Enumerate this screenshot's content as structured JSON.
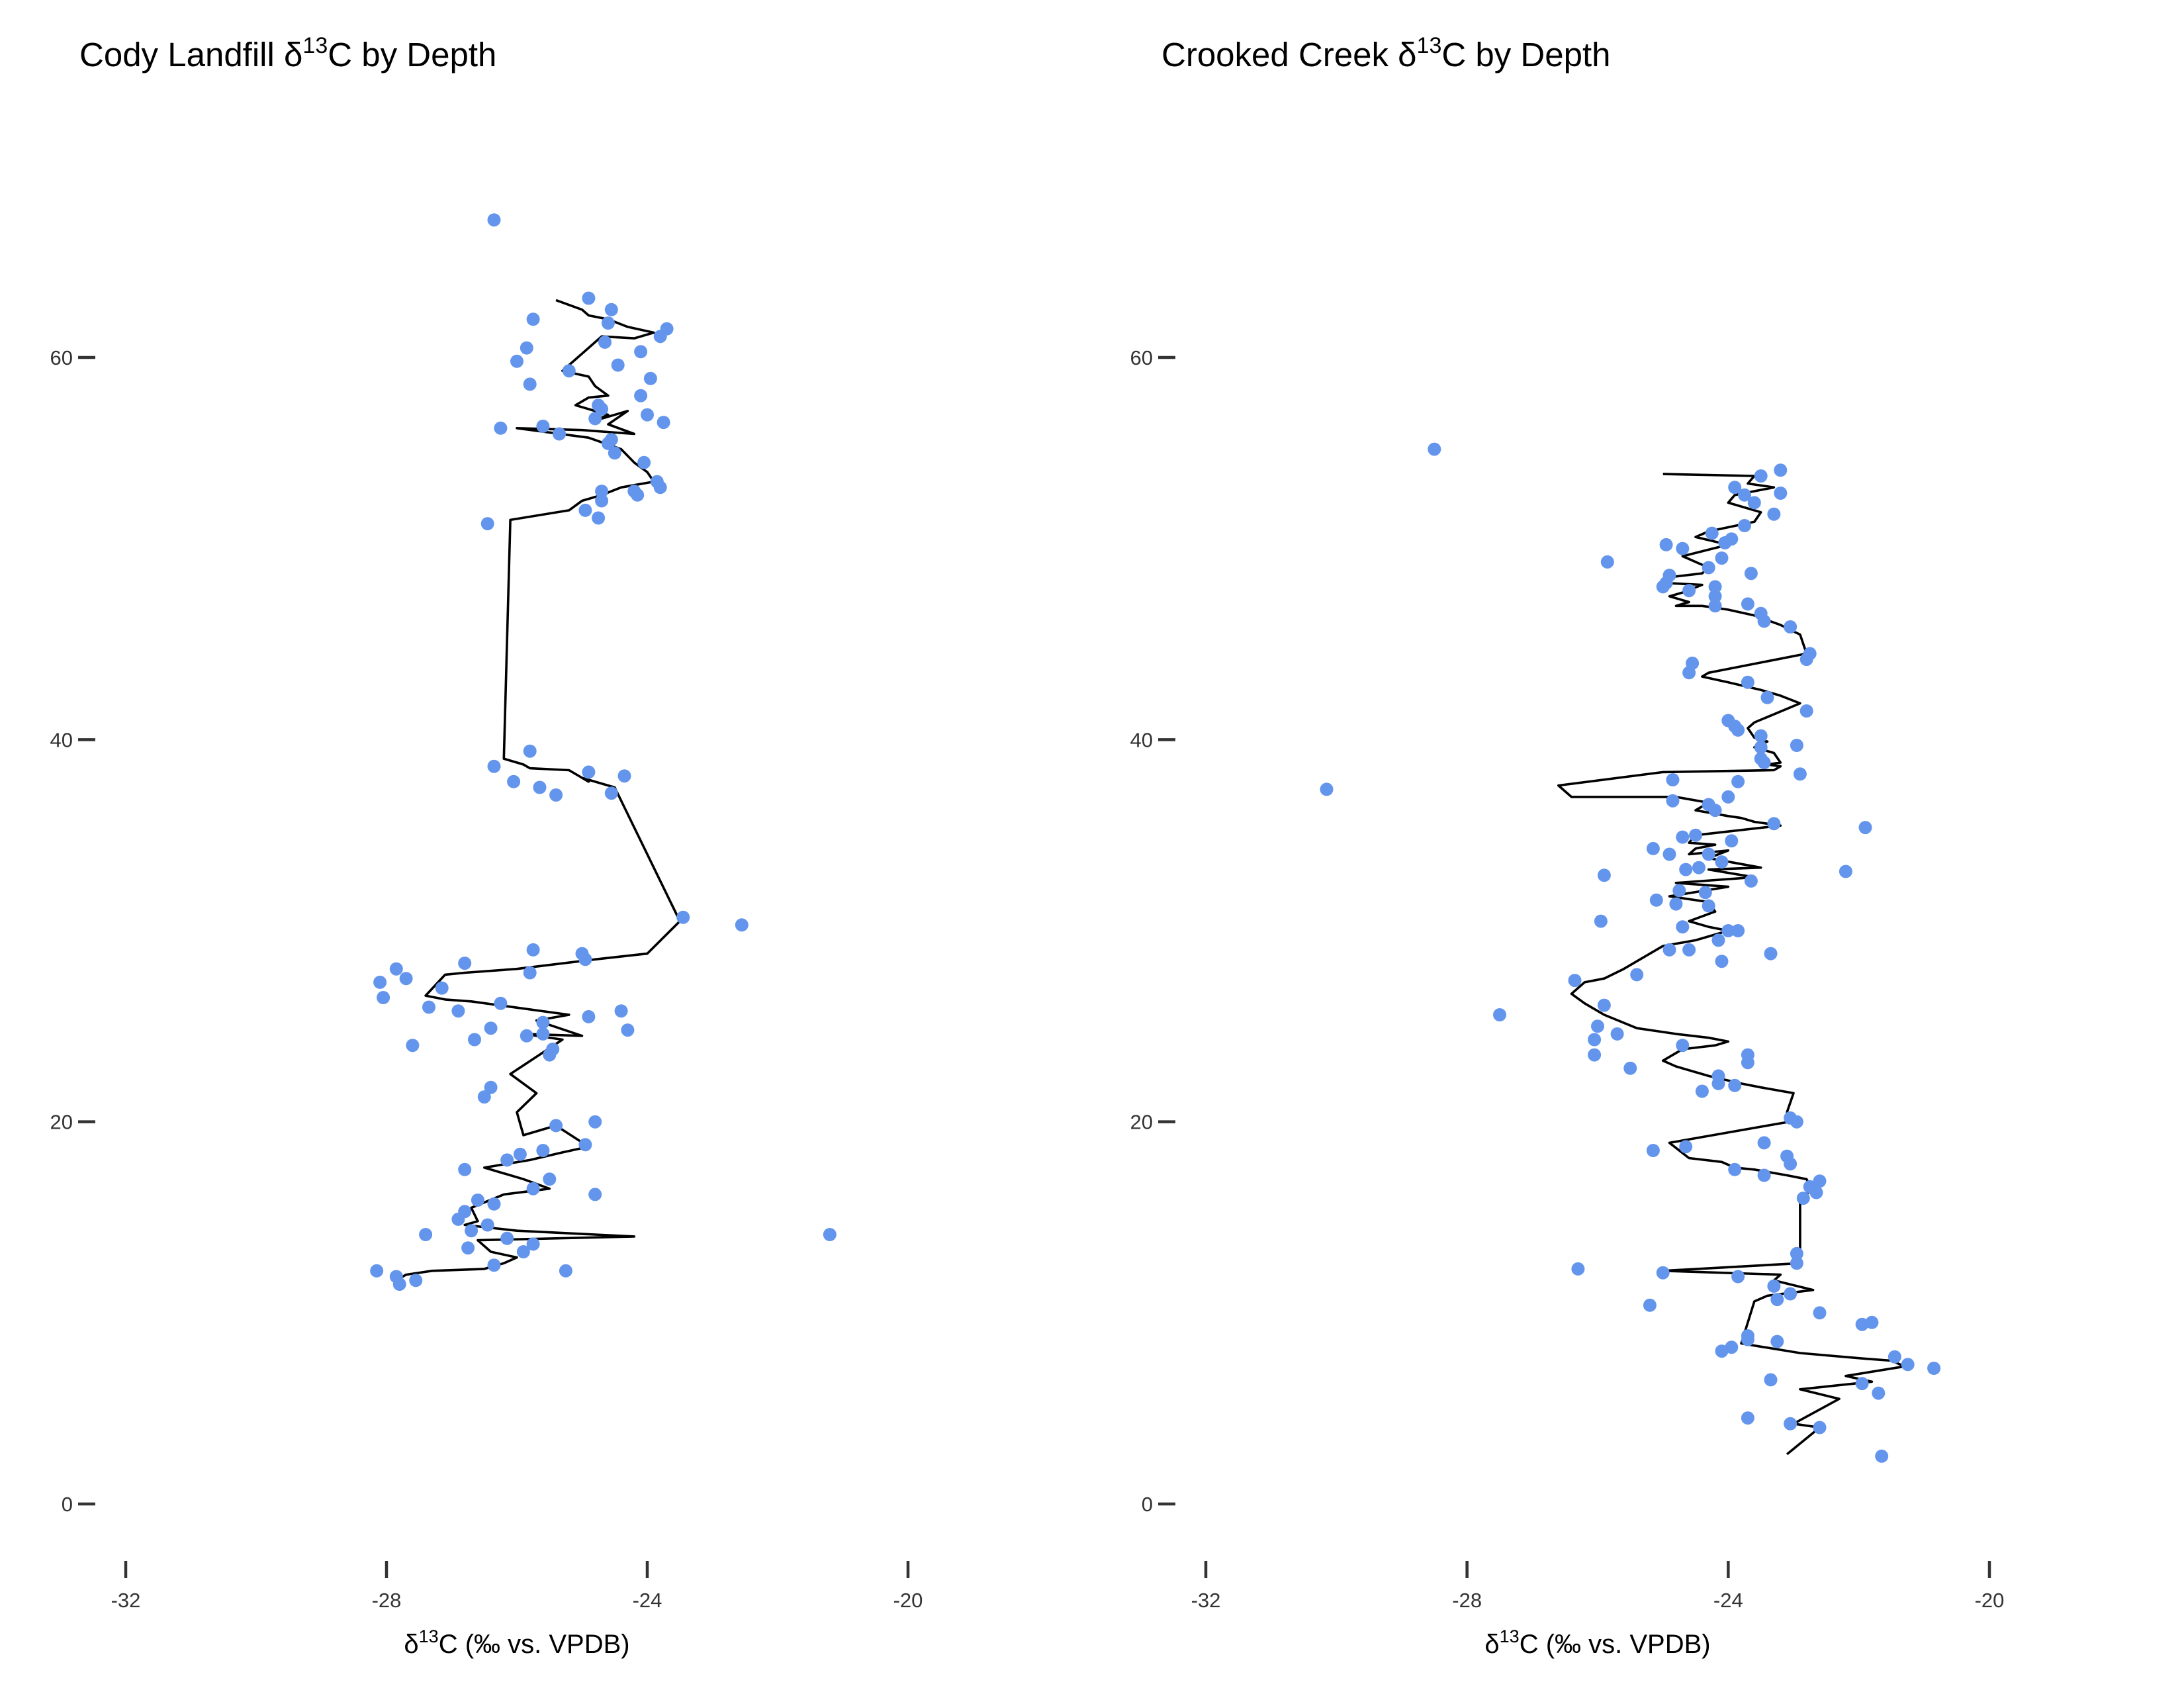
{
  "colors": {
    "points": "#6495ED",
    "line": "#000000",
    "text": "#333333"
  },
  "chart_data": [
    {
      "type": "scatter",
      "title_prefix": "Cody Landfill δ",
      "title_sup": "13",
      "title_suffix": "C by Depth",
      "xlabel_prefix": "δ",
      "xlabel_sup": "13",
      "xlabel_suffix": "C (‰ vs. VPDB)",
      "ylabel": "",
      "xlim": [
        -32.3,
        -19.5
      ],
      "ylim": [
        -2,
        70
      ],
      "x_ticks": [
        -32,
        -28,
        -24,
        -20
      ],
      "x_tick_labels": [
        "-32",
        "-28",
        "-24",
        "-20"
      ],
      "y_ticks": [
        0,
        20,
        40,
        60
      ],
      "y_tick_labels": [
        "0",
        "20",
        "40",
        "60"
      ],
      "grid": false,
      "legend": "none",
      "series": [
        {
          "kind": "points",
          "x": [
            -26.35,
            -24.9,
            -24.55,
            -25.75,
            -24.6,
            -23.7,
            -23.8,
            -24.65,
            -25.85,
            -24.1,
            -26.0,
            -24.45,
            -25.2,
            -23.95,
            -25.8,
            -24.1,
            -24.75,
            -24.7,
            -24.0,
            -24.8,
            -26.25,
            -23.75,
            -25.6,
            -25.35,
            -24.55,
            -24.6,
            -24.5,
            -24.05,
            -23.85,
            -23.8,
            -24.7,
            -24.2,
            -24.15,
            -24.7,
            -24.95,
            -24.75,
            -26.45,
            -25.8,
            -24.9,
            -26.35,
            -24.35,
            -26.05,
            -25.65,
            -25.4,
            -24.55,
            -23.45,
            -22.55,
            -25.75,
            -25.0,
            -24.95,
            -26.8,
            -27.85,
            -25.8,
            -28.1,
            -27.7,
            -28.05,
            -27.15,
            -27.35,
            -26.25,
            -26.9,
            -24.4,
            -24.9,
            -25.6,
            -26.4,
            -24.3,
            -25.6,
            -25.85,
            -26.65,
            -27.6,
            -25.45,
            -25.5,
            -26.4,
            -26.5,
            -24.8,
            -25.4,
            -24.95,
            -25.6,
            -25.95,
            -26.15,
            -26.8,
            -25.5,
            -24.8,
            -25.75,
            -26.6,
            -26.35,
            -26.8,
            -26.9,
            -26.45,
            -26.7,
            -27.4,
            -26.15,
            -25.75,
            -26.75,
            -25.9,
            -21.2,
            -26.35,
            -25.25,
            -28.15,
            -27.85,
            -27.55,
            -27.8
          ],
          "y": [
            67.2,
            63.1,
            62.5,
            62.0,
            61.8,
            61.5,
            61.1,
            60.8,
            60.5,
            60.3,
            59.8,
            59.6,
            59.3,
            58.9,
            58.6,
            58.0,
            57.5,
            57.3,
            57.0,
            56.8,
            56.3,
            56.6,
            56.4,
            56.0,
            55.7,
            55.5,
            55.0,
            54.5,
            53.5,
            53.2,
            53.0,
            53.0,
            52.8,
            52.5,
            52.0,
            51.6,
            51.3,
            39.4,
            38.3,
            38.6,
            38.1,
            37.8,
            37.5,
            37.1,
            37.2,
            30.7,
            30.3,
            29.0,
            28.8,
            28.5,
            28.3,
            28.0,
            27.8,
            27.3,
            27.5,
            26.5,
            27.0,
            26.0,
            26.2,
            25.8,
            25.8,
            25.5,
            25.2,
            24.9,
            24.8,
            24.6,
            24.5,
            24.3,
            24.0,
            23.8,
            23.5,
            21.8,
            21.3,
            20.0,
            19.8,
            18.8,
            18.5,
            18.3,
            18.0,
            17.5,
            17.0,
            16.2,
            16.5,
            15.9,
            15.7,
            15.3,
            14.9,
            14.6,
            14.3,
            14.1,
            13.9,
            13.6,
            13.4,
            13.2,
            14.1,
            12.5,
            12.2,
            12.2,
            11.9,
            11.7,
            11.5
          ]
        },
        {
          "kind": "line",
          "x": [
            -25.4,
            -25.0,
            -24.9,
            -24.6,
            -24.3,
            -23.9,
            -24.2,
            -24.7,
            -25.2,
            -25.3,
            -24.9,
            -24.8,
            -24.6,
            -24.9,
            -25.1,
            -24.6,
            -24.8,
            -24.3,
            -24.6,
            -24.2,
            -25.0,
            -26.0,
            -24.9,
            -24.4,
            -24.2,
            -24.0,
            -23.9,
            -24.4,
            -24.7,
            -25.0,
            -25.2,
            -26.1,
            -26.2,
            -25.9,
            -25.8,
            -25.2,
            -24.9,
            -25.0,
            -24.5,
            -23.5,
            -24.0,
            -24.8,
            -26.0,
            -26.8,
            -27.1,
            -27.4,
            -27.1,
            -26.7,
            -25.2,
            -25.7,
            -25.0,
            -25.9,
            -25.3,
            -26.1,
            -25.7,
            -26.0,
            -25.9,
            -25.4,
            -24.9,
            -25.3,
            -25.8,
            -26.5,
            -25.9,
            -25.5,
            -26.2,
            -26.7,
            -26.6,
            -26.8,
            -26.0,
            -24.2,
            -26.6,
            -26.4,
            -26.0,
            -26.2,
            -26.5,
            -27.3,
            -27.7,
            -27.8
          ],
          "y": [
            63.0,
            62.5,
            62.2,
            62.0,
            61.6,
            61.3,
            61.0,
            61.1,
            59.6,
            59.3,
            59.0,
            58.5,
            58.0,
            57.9,
            57.5,
            57.0,
            56.7,
            57.2,
            56.5,
            56.0,
            56.2,
            56.3,
            55.8,
            55.2,
            54.5,
            54.0,
            53.5,
            53.2,
            52.8,
            52.5,
            52.0,
            51.5,
            39.0,
            38.7,
            38.5,
            38.4,
            37.8,
            38.0,
            37.5,
            30.5,
            28.8,
            28.5,
            28.0,
            27.8,
            27.7,
            26.6,
            26.4,
            26.3,
            25.6,
            25.3,
            24.5,
            24.6,
            24.3,
            22.5,
            21.5,
            20.5,
            19.3,
            19.8,
            18.7,
            18.4,
            18.0,
            17.6,
            17.0,
            16.5,
            16.2,
            15.5,
            14.8,
            14.6,
            14.3,
            14.0,
            13.8,
            13.2,
            12.9,
            12.6,
            12.3,
            12.2,
            12.0,
            11.8
          ]
        }
      ]
    },
    {
      "type": "scatter",
      "title_prefix": "Crooked Creek δ",
      "title_sup": "13",
      "title_suffix": "C by Depth",
      "xlabel_prefix": "δ",
      "xlabel_sup": "13",
      "xlabel_suffix": "C (‰ vs. VPDB)",
      "ylabel": "",
      "xlim": [
        -32.3,
        -19.5
      ],
      "ylim": [
        -2,
        70
      ],
      "x_ticks": [
        -32,
        -28,
        -24,
        -20
      ],
      "x_tick_labels": [
        "-32",
        "-28",
        "-24",
        "-20"
      ],
      "y_ticks": [
        0,
        20,
        40,
        60
      ],
      "y_tick_labels": [
        "0",
        "20",
        "40",
        "60"
      ],
      "grid": false,
      "legend": "none",
      "series": [
        {
          "kind": "points",
          "x": [
            -28.5,
            -23.2,
            -23.5,
            -23.9,
            -23.2,
            -23.75,
            -23.6,
            -23.3,
            -23.75,
            -24.25,
            -23.95,
            -24.05,
            -24.7,
            -24.95,
            -25.85,
            -24.1,
            -24.3,
            -23.65,
            -24.9,
            -24.95,
            -24.2,
            -25.0,
            -24.6,
            -24.2,
            -24.2,
            -23.7,
            -23.5,
            -23.45,
            -23.05,
            -22.75,
            -22.8,
            -24.55,
            -24.6,
            -23.7,
            -23.4,
            -24.0,
            -22.8,
            -23.9,
            -23.85,
            -23.5,
            -23.5,
            -22.95,
            -23.5,
            -23.45,
            -22.9,
            -24.85,
            -30.15,
            -23.85,
            -24.0,
            -24.85,
            -24.3,
            -24.2,
            -23.3,
            -21.9,
            -24.5,
            -24.7,
            -23.95,
            -25.15,
            -24.9,
            -24.3,
            -24.1,
            -24.45,
            -22.2,
            -24.65,
            -25.9,
            -23.65,
            -24.75,
            -24.35,
            -25.1,
            -24.8,
            -24.3,
            -25.95,
            -24.0,
            -23.85,
            -24.7,
            -24.15,
            -24.9,
            -24.6,
            -23.35,
            -24.1,
            -25.4,
            -26.35,
            -27.5,
            -25.9,
            -26.0,
            -25.7,
            -26.05,
            -26.05,
            -24.7,
            -23.7,
            -24.15,
            -23.7,
            -25.5,
            -24.15,
            -24.4,
            -23.9,
            -23.05,
            -22.95,
            -23.45,
            -25.15,
            -24.65,
            -23.1,
            -23.05,
            -23.9,
            -23.45,
            -22.6,
            -22.75,
            -22.65,
            -22.85,
            -22.95,
            -26.3,
            -22.95,
            -25.0,
            -23.85,
            -23.3,
            -23.05,
            -23.25,
            -25.2,
            -22.6,
            -21.95,
            -21.8,
            -23.25,
            -23.7,
            -23.7,
            -23.95,
            -24.1,
            -21.45,
            -21.25,
            -20.85,
            -23.35,
            -21.95,
            -21.7,
            -23.7,
            -23.05,
            -22.6,
            -21.65
          ],
          "y": [
            55.2,
            54.1,
            53.8,
            53.2,
            52.9,
            52.8,
            52.4,
            51.8,
            51.2,
            50.8,
            50.5,
            50.3,
            50.0,
            50.2,
            49.3,
            49.5,
            49.0,
            48.7,
            48.6,
            48.2,
            48.0,
            48.0,
            47.8,
            47.5,
            47.0,
            47.1,
            46.6,
            46.2,
            45.9,
            44.5,
            44.2,
            44.0,
            43.5,
            43.0,
            42.2,
            41.0,
            41.5,
            40.7,
            40.5,
            40.2,
            39.6,
            39.7,
            39.0,
            38.8,
            38.2,
            37.9,
            37.4,
            37.8,
            37.0,
            36.8,
            36.6,
            36.3,
            35.6,
            35.4,
            35.0,
            34.9,
            34.7,
            34.3,
            34.0,
            34.0,
            33.6,
            33.3,
            33.1,
            33.2,
            32.9,
            32.6,
            32.1,
            32.0,
            31.6,
            31.4,
            31.3,
            30.5,
            30.0,
            30.0,
            30.2,
            29.5,
            29.0,
            29.0,
            28.8,
            28.4,
            27.7,
            27.4,
            25.6,
            26.1,
            25.0,
            24.6,
            24.3,
            23.5,
            24.0,
            23.5,
            22.4,
            23.1,
            22.8,
            22.0,
            21.6,
            21.9,
            20.2,
            20.0,
            18.9,
            18.5,
            18.7,
            18.2,
            17.8,
            17.5,
            17.2,
            16.9,
            16.6,
            16.3,
            16.0,
            13.1,
            12.3,
            12.6,
            12.1,
            11.9,
            11.4,
            11.0,
            10.7,
            10.4,
            10.0,
            9.4,
            9.5,
            8.5,
            8.8,
            8.6,
            8.2,
            8.0,
            7.7,
            7.3,
            7.1,
            6.5,
            6.3,
            5.8,
            4.5,
            4.2,
            4.0,
            2.5
          ]
        },
        {
          "kind": "line",
          "x": [
            -25.0,
            -23.6,
            -23.7,
            -23.3,
            -23.9,
            -24.0,
            -23.5,
            -23.6,
            -24.3,
            -24.5,
            -24.0,
            -24.7,
            -24.3,
            -24.4,
            -24.9,
            -25.0,
            -24.4,
            -24.7,
            -24.9,
            -24.6,
            -24.8,
            -24.4,
            -24.0,
            -23.6,
            -23.2,
            -22.9,
            -22.8,
            -24.3,
            -24.4,
            -24.0,
            -23.5,
            -23.2,
            -22.9,
            -23.6,
            -23.7,
            -23.6,
            -23.4,
            -23.6,
            -23.3,
            -23.2,
            -23.4,
            -23.2,
            -23.3,
            -25.0,
            -26.6,
            -26.4,
            -24.8,
            -24.3,
            -24.5,
            -24.0,
            -23.8,
            -23.6,
            -23.2,
            -24.5,
            -24.6,
            -24.2,
            -24.5,
            -24.6,
            -24.0,
            -24.3,
            -23.5,
            -24.3,
            -23.6,
            -24.8,
            -24.0,
            -24.9,
            -24.3,
            -24.2,
            -24.6,
            -24.3,
            -24.0,
            -24.5,
            -25.0,
            -25.6,
            -25.9,
            -26.2,
            -26.4,
            -26.2,
            -25.9,
            -25.4,
            -24.8,
            -24.3,
            -24.0,
            -24.2,
            -24.7,
            -25.0,
            -24.8,
            -24.3,
            -23.8,
            -23.5,
            -23.0,
            -23.1,
            -22.9,
            -23.4,
            -24.9,
            -24.6,
            -24.1,
            -23.9,
            -23.6,
            -23.1,
            -22.8,
            -22.7,
            -22.9,
            -22.9,
            -22.9,
            -25.0,
            -23.2,
            -23.3,
            -22.7,
            -23.4,
            -23.6,
            -23.8,
            -22.9,
            -21.9,
            -21.5,
            -21.3,
            -22.2,
            -21.8,
            -22.9,
            -22.3,
            -23.0,
            -22.6,
            -23.1
          ],
          "y": [
            53.9,
            53.8,
            53.4,
            53.2,
            52.8,
            52.4,
            51.9,
            51.4,
            50.9,
            50.6,
            50.2,
            49.6,
            49.0,
            48.7,
            48.5,
            48.2,
            48.1,
            47.7,
            47.5,
            47.2,
            47.0,
            47.0,
            46.8,
            46.5,
            46.0,
            45.5,
            44.5,
            43.5,
            43.3,
            43.0,
            42.6,
            42.3,
            41.9,
            40.9,
            40.6,
            40.1,
            39.9,
            39.6,
            39.3,
            38.8,
            38.7,
            38.6,
            38.4,
            38.3,
            37.6,
            37.0,
            37.0,
            36.7,
            36.3,
            36.0,
            35.9,
            35.7,
            35.5,
            35.0,
            34.6,
            34.5,
            34.3,
            34.0,
            34.2,
            33.8,
            33.3,
            33.2,
            32.8,
            32.5,
            32.3,
            31.8,
            31.5,
            31.0,
            30.5,
            30.2,
            30.0,
            29.5,
            29.2,
            28.0,
            27.5,
            27.3,
            26.7,
            26.2,
            25.6,
            24.9,
            24.6,
            24.4,
            24.2,
            24.0,
            23.8,
            23.2,
            22.9,
            22.4,
            22.0,
            21.8,
            21.5,
            20.5,
            20.1,
            19.8,
            18.9,
            18.1,
            17.9,
            17.6,
            17.5,
            17.2,
            17.0,
            16.4,
            16.1,
            13.5,
            12.6,
            12.2,
            12.0,
            11.7,
            11.2,
            10.9,
            10.6,
            8.4,
            7.9,
            7.6,
            7.5,
            7.2,
            6.7,
            6.4,
            6.0,
            5.5,
            4.2,
            4.0,
            2.6
          ]
        }
      ]
    }
  ]
}
